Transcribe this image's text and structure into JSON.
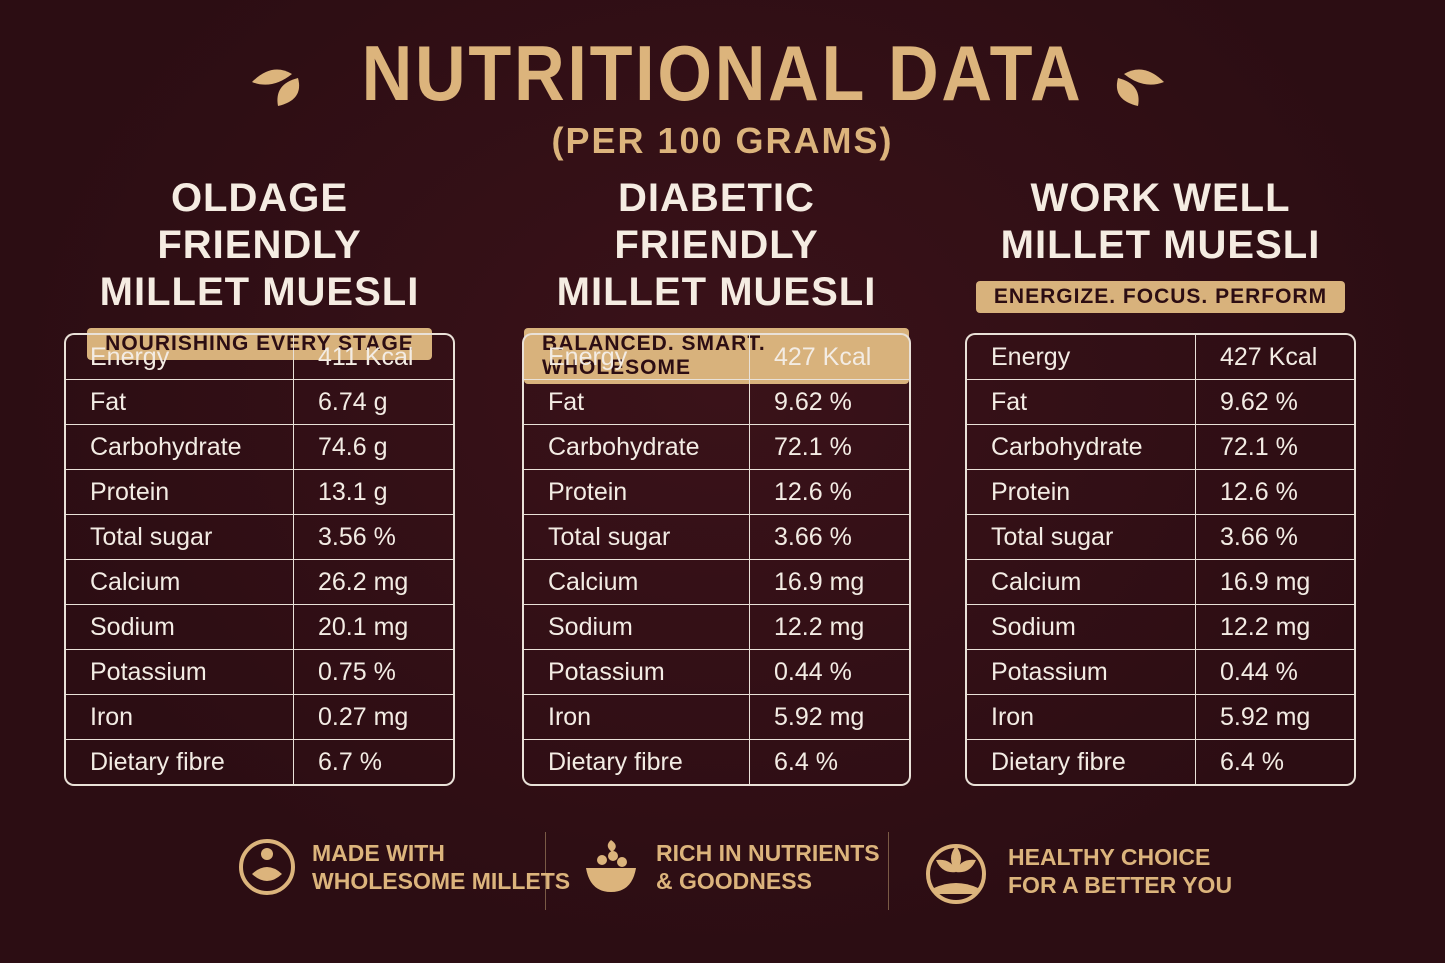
{
  "header": {
    "title": "NUTRITIONAL DATA",
    "subtitle": "(PER 100 GRAMS)"
  },
  "products": [
    {
      "title": [
        "OLDAGE FRIENDLY",
        "MILLET MUESLI"
      ],
      "tagline": "NOURISHING EVERY STAGE",
      "rows": [
        [
          "Energy",
          "411 Kcal"
        ],
        [
          "Fat",
          "6.74 g"
        ],
        [
          "Carbohydrate",
          "74.6 g"
        ],
        [
          "Protein",
          "13.1 g"
        ],
        [
          "Total sugar",
          "3.56 %"
        ],
        [
          "Calcium",
          "26.2 mg"
        ],
        [
          "Sodium",
          "20.1 mg"
        ],
        [
          "Potassium",
          "0.75 %"
        ],
        [
          "Iron",
          "0.27 mg"
        ],
        [
          "Dietary fibre",
          "6.7 %"
        ]
      ]
    },
    {
      "title": [
        "DIABETIC FRIENDLY",
        "MILLET MUESLI"
      ],
      "tagline": "BALANCED. SMART. WHOLESOME",
      "rows": [
        [
          "Energy",
          "427 Kcal"
        ],
        [
          "Fat",
          "9.62 %"
        ],
        [
          "Carbohydrate",
          "72.1 %"
        ],
        [
          "Protein",
          "12.6 %"
        ],
        [
          "Total sugar",
          "3.66 %"
        ],
        [
          "Calcium",
          "16.9 mg"
        ],
        [
          "Sodium",
          "12.2 mg"
        ],
        [
          "Potassium",
          "0.44 %"
        ],
        [
          "Iron",
          "5.92 mg"
        ],
        [
          "Dietary fibre",
          "6.4 %"
        ]
      ]
    },
    {
      "title": [
        "WORK WELL",
        "MILLET MUESLI"
      ],
      "tagline": "ENERGIZE. FOCUS. PERFORM",
      "rows": [
        [
          "Energy",
          "427 Kcal"
        ],
        [
          "Fat",
          "9.62 %"
        ],
        [
          "Carbohydrate",
          "72.1 %"
        ],
        [
          "Protein",
          "12.6 %"
        ],
        [
          "Total sugar",
          "3.66 %"
        ],
        [
          "Calcium",
          "16.9 mg"
        ],
        [
          "Sodium",
          "12.2 mg"
        ],
        [
          "Potassium",
          "0.44 %"
        ],
        [
          "Iron",
          "5.92 mg"
        ],
        [
          "Dietary fibre",
          "6.4 %"
        ]
      ]
    }
  ],
  "features": [
    {
      "lines": [
        "MADE WITH",
        "WHOLESOME MILLETS"
      ]
    },
    {
      "lines": [
        "RICH IN NUTRIENTS",
        "& GOODNESS"
      ]
    },
    {
      "lines": [
        "HEALTHY CHOICE",
        "FOR A BETTER YOU"
      ]
    }
  ]
}
